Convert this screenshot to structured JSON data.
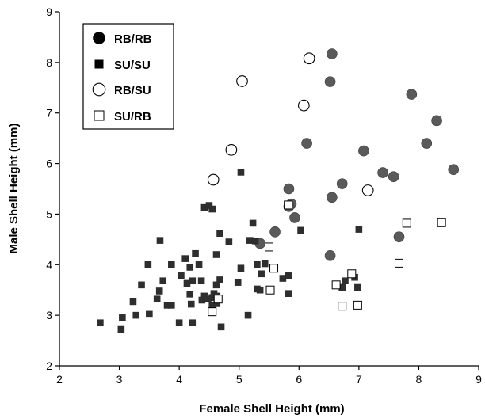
{
  "chart_data": {
    "type": "scatter",
    "xlabel": "Female Shell Height (mm)",
    "ylabel": "Male Shell Height (mm)",
    "xlim": [
      2,
      9
    ],
    "ylim": [
      2,
      9
    ],
    "xticks": [
      2,
      3,
      4,
      5,
      6,
      7,
      8,
      9
    ],
    "yticks": [
      2,
      3,
      4,
      5,
      6,
      7,
      8,
      9
    ],
    "grid": false,
    "legend_position": "top-left",
    "series": [
      {
        "name": "RB/RB",
        "marker": "filled-circle",
        "color": "#555555",
        "points": [
          [
            6.55,
            8.17
          ],
          [
            6.52,
            7.62
          ],
          [
            7.88,
            7.37
          ],
          [
            8.3,
            6.85
          ],
          [
            6.13,
            6.4
          ],
          [
            8.13,
            6.4
          ],
          [
            7.08,
            6.25
          ],
          [
            8.58,
            5.88
          ],
          [
            7.4,
            5.82
          ],
          [
            7.58,
            5.74
          ],
          [
            6.72,
            5.6
          ],
          [
            5.83,
            5.5
          ],
          [
            6.55,
            5.33
          ],
          [
            5.87,
            5.2
          ],
          [
            5.83,
            5.15
          ],
          [
            5.93,
            4.93
          ],
          [
            5.6,
            4.65
          ],
          [
            7.67,
            4.55
          ],
          [
            5.35,
            4.42
          ],
          [
            6.52,
            4.18
          ]
        ]
      },
      {
        "name": "SU/SU",
        "marker": "filled-square",
        "color": "#333333",
        "points": [
          [
            5.03,
            5.83
          ],
          [
            4.42,
            5.13
          ],
          [
            4.5,
            5.17
          ],
          [
            4.55,
            5.1
          ],
          [
            5.23,
            4.82
          ],
          [
            6.03,
            4.68
          ],
          [
            7.0,
            4.7
          ],
          [
            4.68,
            4.62
          ],
          [
            5.18,
            4.48
          ],
          [
            3.68,
            4.48
          ],
          [
            5.27,
            4.47
          ],
          [
            4.83,
            4.45
          ],
          [
            4.27,
            4.22
          ],
          [
            4.62,
            4.2
          ],
          [
            4.1,
            4.12
          ],
          [
            4.33,
            4.0
          ],
          [
            3.87,
            4.0
          ],
          [
            3.48,
            4.0
          ],
          [
            5.3,
            4.0
          ],
          [
            5.43,
            4.02
          ],
          [
            5.03,
            3.93
          ],
          [
            4.18,
            3.95
          ],
          [
            4.03,
            3.78
          ],
          [
            3.73,
            3.68
          ],
          [
            4.22,
            3.68
          ],
          [
            3.37,
            3.6
          ],
          [
            4.13,
            3.63
          ],
          [
            4.37,
            3.68
          ],
          [
            4.68,
            3.7
          ],
          [
            4.98,
            3.65
          ],
          [
            5.37,
            3.82
          ],
          [
            5.73,
            3.73
          ],
          [
            5.82,
            3.78
          ],
          [
            6.93,
            3.75
          ],
          [
            6.77,
            3.68
          ],
          [
            4.62,
            3.6
          ],
          [
            3.67,
            3.48
          ],
          [
            4.18,
            3.42
          ],
          [
            4.42,
            3.38
          ],
          [
            4.58,
            3.43
          ],
          [
            4.63,
            3.38
          ],
          [
            5.3,
            3.52
          ],
          [
            5.35,
            3.5
          ],
          [
            5.82,
            3.43
          ],
          [
            6.72,
            3.55
          ],
          [
            6.98,
            3.55
          ],
          [
            3.23,
            3.27
          ],
          [
            3.63,
            3.32
          ],
          [
            3.8,
            3.2
          ],
          [
            3.87,
            3.2
          ],
          [
            4.2,
            3.22
          ],
          [
            4.55,
            3.2
          ],
          [
            4.63,
            3.23
          ],
          [
            3.05,
            2.95
          ],
          [
            3.28,
            3.0
          ],
          [
            3.5,
            3.02
          ],
          [
            3.03,
            2.72
          ],
          [
            2.68,
            2.85
          ],
          [
            4.0,
            2.85
          ],
          [
            4.22,
            2.85
          ],
          [
            4.7,
            2.77
          ],
          [
            5.15,
            3.0
          ],
          [
            4.38,
            3.3
          ],
          [
            4.48,
            3.32
          ],
          [
            4.55,
            3.35
          ]
        ]
      },
      {
        "name": "RB/SU",
        "marker": "open-circle",
        "color": "#000000",
        "points": [
          [
            6.17,
            8.08
          ],
          [
            5.05,
            7.63
          ],
          [
            6.08,
            7.15
          ],
          [
            4.87,
            6.27
          ],
          [
            4.57,
            5.68
          ],
          [
            7.15,
            5.47
          ]
        ]
      },
      {
        "name": "SU/RB",
        "marker": "open-square",
        "color": "#000000",
        "points": [
          [
            5.82,
            5.18
          ],
          [
            7.8,
            4.82
          ],
          [
            8.38,
            4.83
          ],
          [
            5.5,
            4.35
          ],
          [
            7.67,
            4.03
          ],
          [
            5.58,
            3.93
          ],
          [
            6.88,
            3.82
          ],
          [
            6.62,
            3.6
          ],
          [
            5.52,
            3.5
          ],
          [
            4.65,
            3.32
          ],
          [
            4.55,
            3.07
          ],
          [
            6.72,
            3.18
          ],
          [
            6.98,
            3.2
          ]
        ]
      }
    ]
  }
}
